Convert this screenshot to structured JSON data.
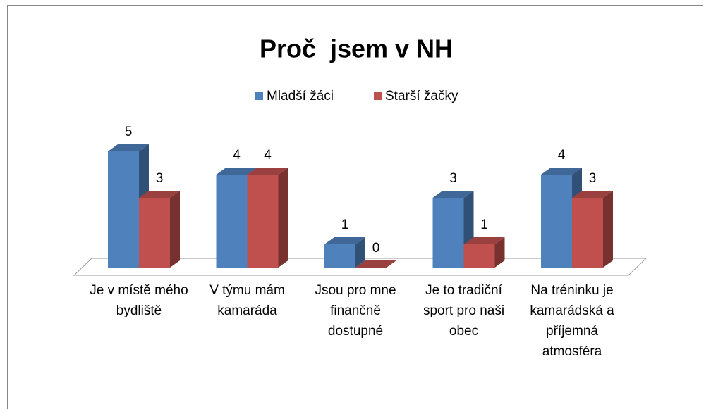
{
  "chart_data": {
    "type": "bar3d",
    "title": "Proč  jsem v NH",
    "categories": [
      "Je v místě mého bydliště",
      "V týmu mám kamaráda",
      "Jsou pro mne finančně dostupné",
      "Je to tradiční sport pro naši obec",
      "Na tréninku je kamarádská a příjemná atmosféra"
    ],
    "series": [
      {
        "name": "Mladší žáci",
        "color": "#4f81bd",
        "values": [
          5,
          4,
          1,
          3,
          4
        ]
      },
      {
        "name": "Starší žačky",
        "color": "#c0504d",
        "values": [
          3,
          4,
          0,
          1,
          3
        ]
      }
    ],
    "legend": "top"
  }
}
